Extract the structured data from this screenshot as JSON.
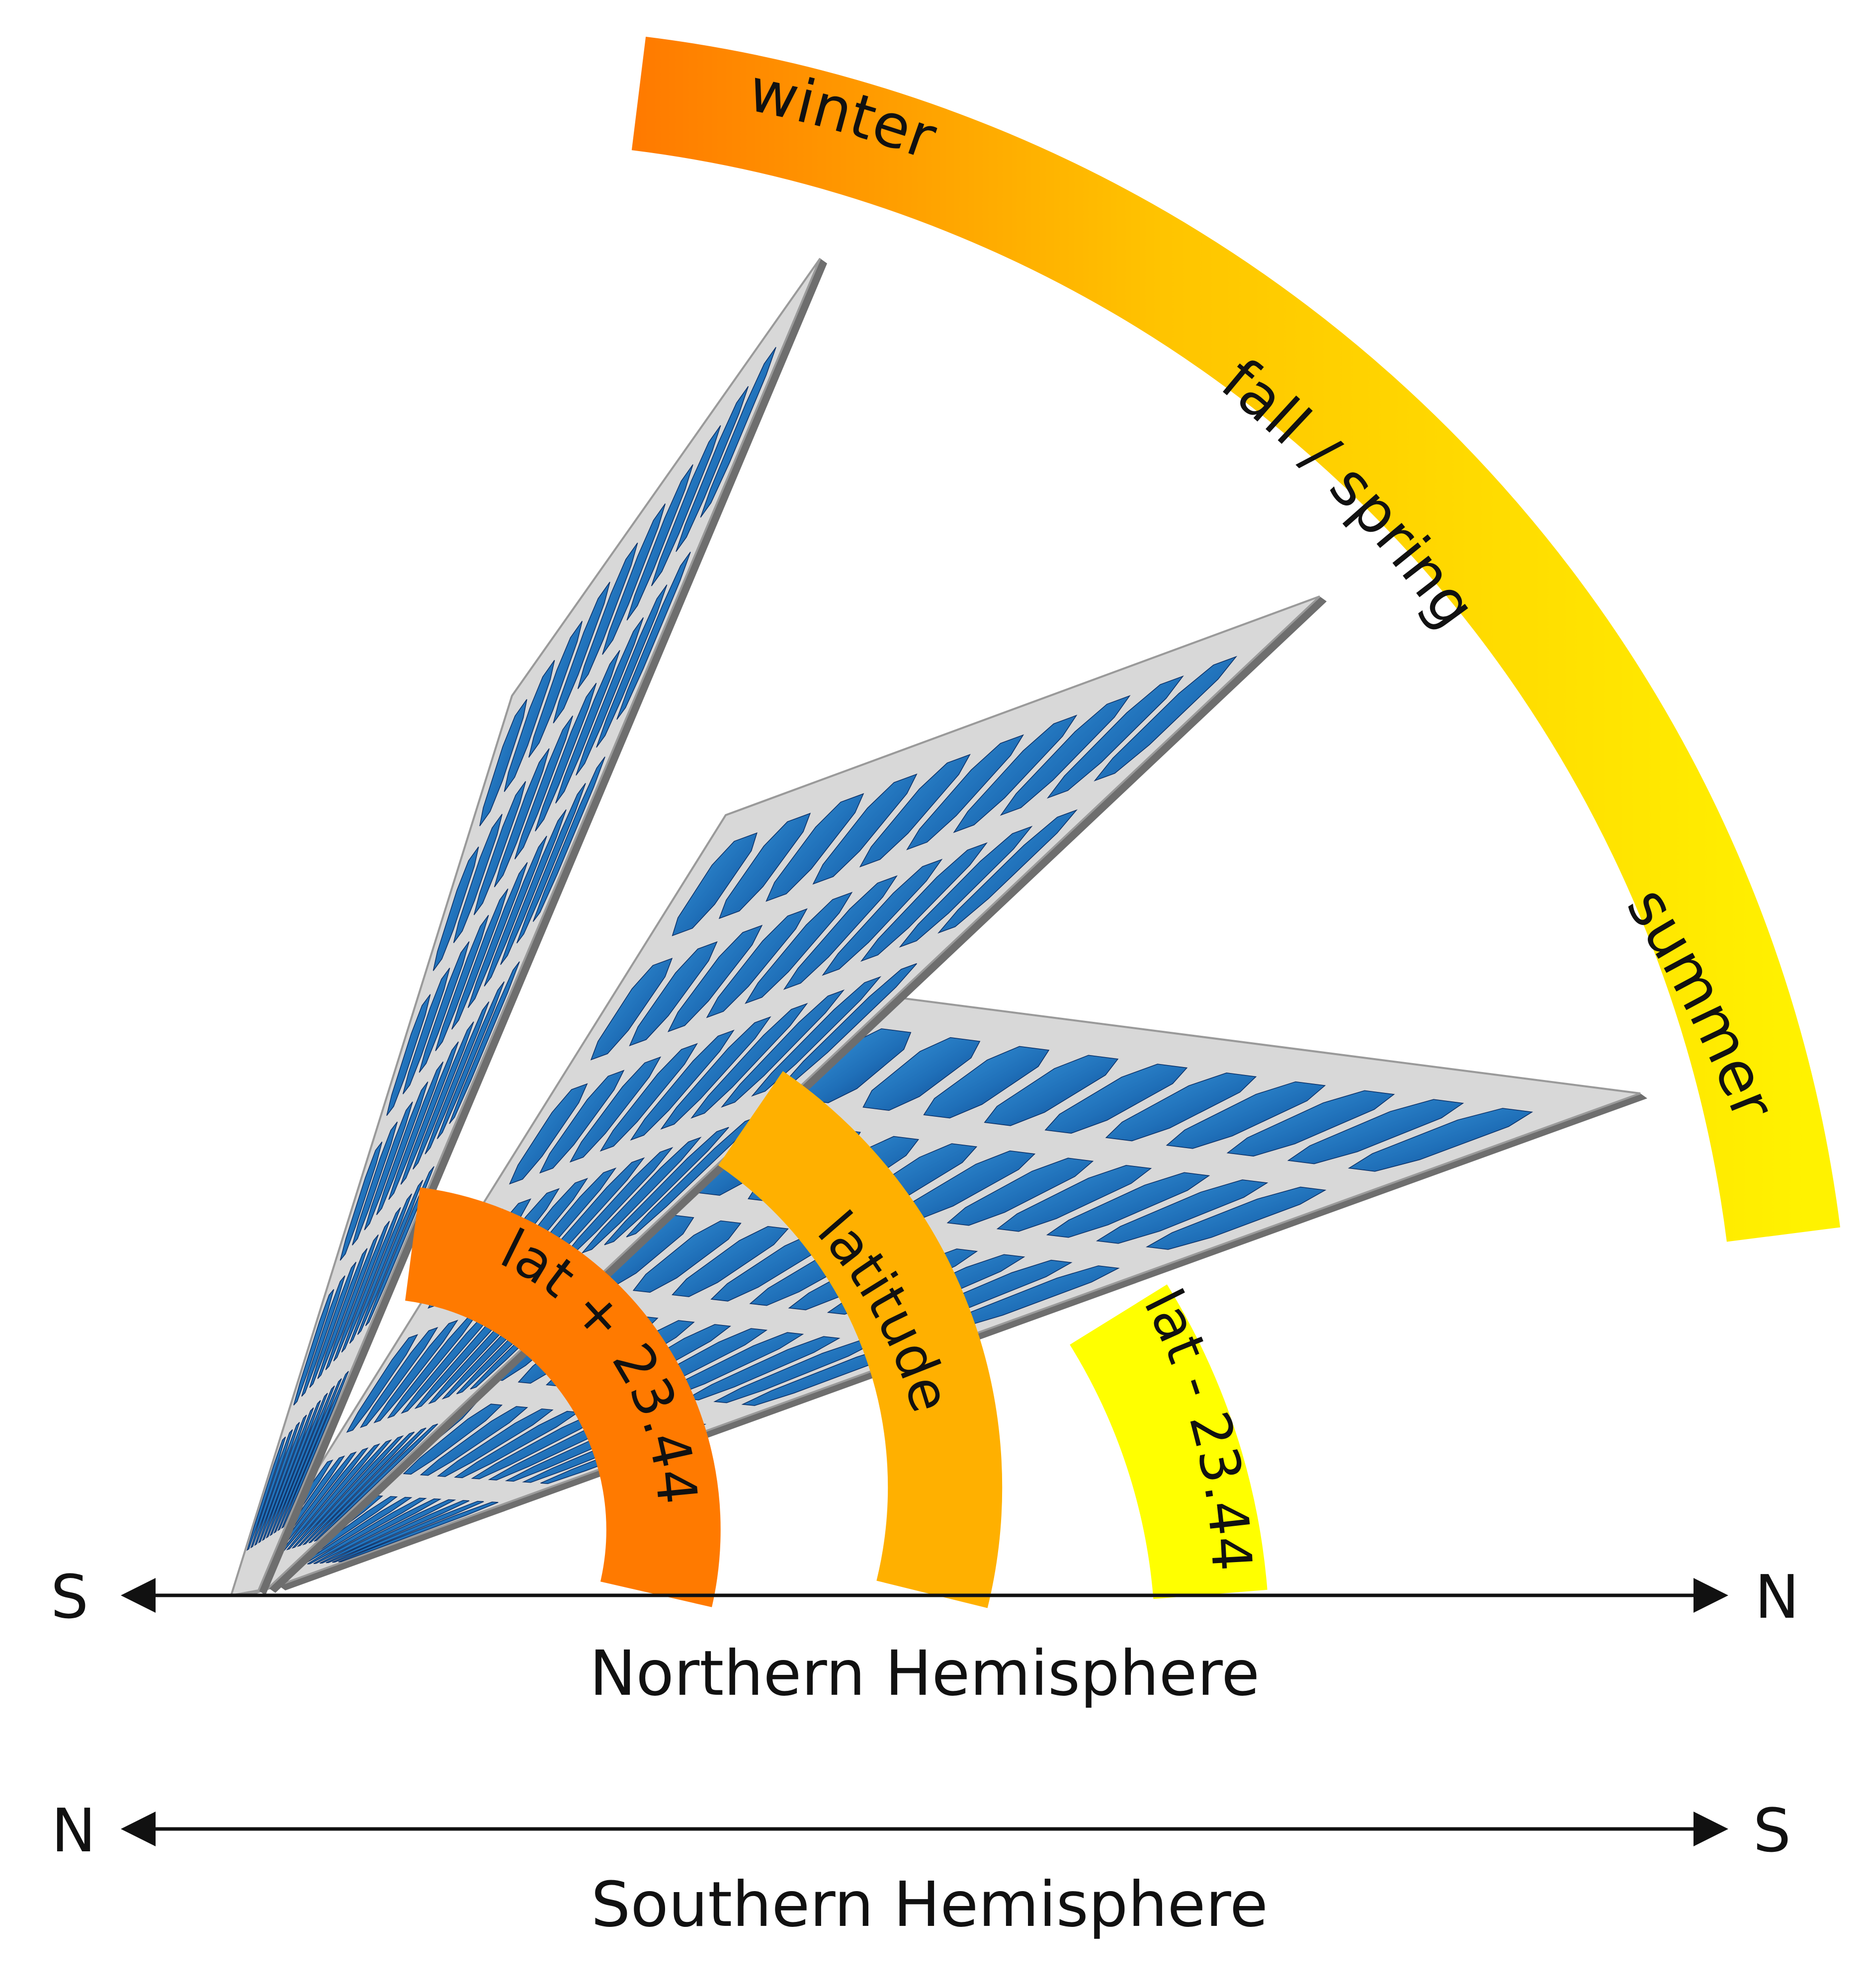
{
  "season_arc": {
    "labels": [
      "winter",
      "fall / spring",
      "summer"
    ],
    "colors": {
      "start": "#FF7A00",
      "mid": "#FFC400",
      "end": "#FFF200"
    }
  },
  "angle_arcs": [
    {
      "label": "lat + 23.44",
      "color": "#FF7A00"
    },
    {
      "label": "latitude",
      "color": "#FFB000"
    },
    {
      "label": "lat - 23.44",
      "color": "#FFFF00"
    }
  ],
  "panel": {
    "cell_color": "#1F6FB8",
    "cell_dark": "#0B3F86",
    "frame_color": "#D8D8D8",
    "frame_shadow": "#6E6E6E"
  },
  "northern": {
    "left": "S",
    "right": "N",
    "caption": "Northern Hemisphere"
  },
  "southern": {
    "left": "N",
    "right": "S",
    "caption": "Southern Hemisphere"
  }
}
